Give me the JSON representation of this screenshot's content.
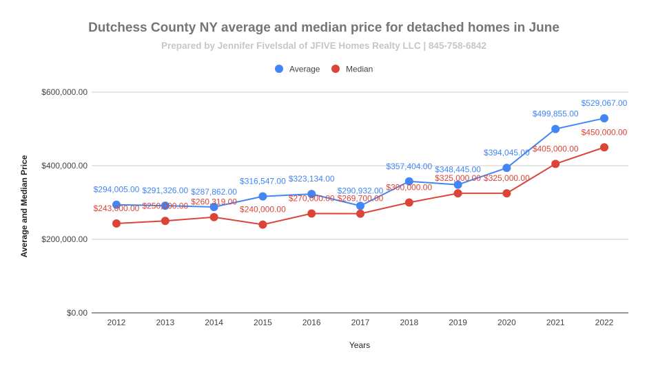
{
  "chart_data": {
    "type": "line",
    "title": "Dutchess County NY average and median price for detached homes in June",
    "subtitle": "Prepared by Jennifer Fivelsdal of  JFIVE Homes Realty LLC | 845-758-6842",
    "xlabel": "Years",
    "ylabel": "Average and Median Price",
    "ylim": [
      0,
      600000
    ],
    "yticks": [
      0,
      200000,
      400000,
      600000
    ],
    "ytick_labels": [
      "$0.00",
      "$200,000.00",
      "$400,000.00",
      "$600,000.00"
    ],
    "grid": true,
    "legend_placement": "top",
    "categories": [
      "2012",
      "2013",
      "2014",
      "2015",
      "2016",
      "2017",
      "2018",
      "2019",
      "2020",
      "2021",
      "2022"
    ],
    "series": [
      {
        "name": "Average",
        "color": "#4285f4",
        "values": [
          294005,
          291326,
          287862,
          316547,
          323134,
          290932,
          357404,
          348445,
          394045,
          499855,
          529067
        ],
        "labels": [
          "$294,005.00",
          "$291,326.00",
          "$287,862.00",
          "$316,547.00",
          "$323,134.00",
          "$290,932.00",
          "$357,404.00",
          "$348,445.00",
          "$394,045.00",
          "$499,855.00",
          "$529,067.00"
        ]
      },
      {
        "name": "Median",
        "color": "#db4437",
        "values": [
          243000,
          250000,
          260319,
          240000,
          270000,
          269700,
          300000,
          325000,
          325000,
          405000,
          450000
        ],
        "labels": [
          "$243,000.00",
          "$250,000.00",
          "$260,319.00",
          "$240,000.00",
          "$270,000.00",
          "$269,700.00",
          "$300,000.00",
          "$325,000.00",
          "$325,000.00",
          "$405,000.00",
          "$450,000.00"
        ]
      }
    ]
  }
}
